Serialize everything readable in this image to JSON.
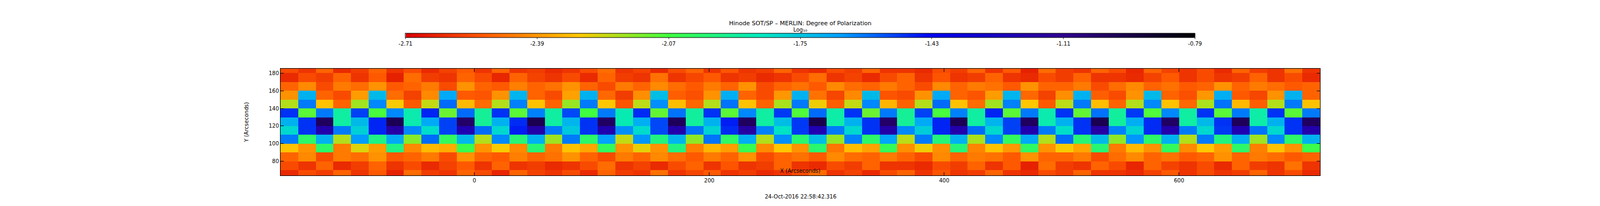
{
  "chart_data": {
    "type": "heatmap",
    "title": "Hinode SOT/SP – MERLIN: Degree of Polarization",
    "subtitle": "24-Oct-2016 22:58:42.316",
    "x_label": "X (Arcseconds)",
    "y_label": "Y (Arcseconds)",
    "colorbar_title": "Log₁₀",
    "x": [
      -157.5,
      -142.5,
      -127.5,
      -112.5,
      -97.5,
      -82.5,
      -67.5,
      -52.5,
      -37.5,
      -22.5,
      -7.5,
      7.5,
      22.5,
      37.5,
      52.5,
      67.5,
      82.5,
      97.5,
      112.5,
      127.5,
      142.5,
      157.5,
      172.5,
      187.5,
      202.5,
      217.5,
      232.5,
      247.5,
      262.5,
      277.5,
      292.5,
      307.5,
      322.5,
      337.5,
      352.5,
      367.5,
      382.5,
      397.5,
      412.5,
      427.5,
      442.5,
      457.5,
      472.5,
      487.5,
      502.5,
      517.5,
      532.5,
      547.5,
      562.5,
      577.5,
      592.5,
      607.5,
      622.5,
      637.5,
      652.5,
      667.5,
      682.5,
      697.5,
      712.5
    ],
    "y": [
      65,
      75,
      85,
      95,
      105,
      115,
      125,
      135,
      145,
      155,
      165,
      175,
      185
    ],
    "cells": [
      [
        -2.62,
        -2.55,
        -2.58,
        -2.5,
        -2.6,
        -2.52,
        -2.64,
        -2.48,
        -2.58,
        -2.6,
        -2.5,
        -2.55,
        -2.63,
        -2.5,
        -2.57,
        -2.6,
        -2.55,
        -2.62,
        -2.5,
        -2.58,
        -2.6,
        -2.47,
        -2.6,
        -2.56,
        -2.52,
        -2.6,
        -2.58,
        -2.62,
        -2.6,
        -2.55,
        -2.48,
        -2.6,
        -2.57,
        -2.62,
        -2.55,
        -2.5,
        -2.6,
        -2.53,
        -2.6,
        -2.58,
        -2.5,
        -2.6,
        -2.62,
        -2.55,
        -2.58,
        -2.5,
        -2.6,
        -2.6,
        -2.62,
        -2.57,
        -2.52,
        -2.6,
        -2.55,
        -2.6,
        -2.58,
        -2.5,
        -2.6,
        -2.55,
        -2.62
      ],
      [
        -2.55,
        -2.6,
        -2.5,
        -2.62,
        -2.58,
        -2.5,
        -2.6,
        -2.55,
        -2.62,
        -2.57,
        -2.52,
        -2.6,
        -2.5,
        -2.6,
        -2.58,
        -2.62,
        -2.6,
        -2.55,
        -2.48,
        -2.6,
        -2.57,
        -2.62,
        -2.55,
        -2.5,
        -2.6,
        -2.53,
        -2.6,
        -2.58,
        -2.5,
        -2.6,
        -2.62,
        -2.55,
        -2.58,
        -2.5,
        -2.6,
        -2.6,
        -2.62,
        -2.55,
        -2.58,
        -2.5,
        -2.6,
        -2.52,
        -2.64,
        -2.48,
        -2.58,
        -2.6,
        -2.5,
        -2.55,
        -2.63,
        -2.5,
        -2.57,
        -2.6,
        -2.55,
        -2.62,
        -2.5,
        -2.58,
        -2.6,
        -2.47,
        -2.6
      ],
      [
        -2.5,
        -2.42,
        -2.55,
        -2.45,
        -2.48,
        -2.4,
        -2.52,
        -2.5,
        -2.45,
        -2.55,
        -2.4,
        -2.5,
        -2.52,
        -2.44,
        -2.5,
        -2.47,
        -2.4,
        -2.5,
        -2.55,
        -2.45,
        -2.5,
        -2.42,
        -2.48,
        -2.52,
        -2.45,
        -2.5,
        -2.4,
        -2.55,
        -2.5,
        -2.47,
        -2.52,
        -2.42,
        -2.48,
        -2.5,
        -2.45,
        -2.5,
        -2.55,
        -2.42,
        -2.5,
        -2.45,
        -2.47,
        -2.52,
        -2.4,
        -2.5,
        -2.5,
        -2.45,
        -2.55,
        -2.48,
        -2.42,
        -2.5,
        -2.47,
        -2.52,
        -2.5,
        -2.4,
        -2.5,
        -2.45,
        -2.48,
        -2.52,
        -2.5
      ],
      [
        -2.3,
        -2.4,
        -2.0,
        -2.45,
        -2.25,
        -2.38,
        -1.95,
        -2.42,
        -2.32,
        -2.35,
        -2.05,
        -2.4,
        -2.28,
        -2.42,
        -1.98,
        -2.45,
        -2.3,
        -2.36,
        -2.02,
        -2.4,
        -2.26,
        -2.4,
        -1.96,
        -2.44,
        -2.33,
        -2.38,
        -2.04,
        -2.42,
        -2.29,
        -2.4,
        -1.99,
        -2.46,
        -2.31,
        -2.37,
        -2.03,
        -2.41,
        -2.27,
        -2.41,
        -1.97,
        -2.43,
        -2.3,
        -2.39,
        -2.01,
        -2.4,
        -2.28,
        -2.36,
        -1.98,
        -2.45,
        -2.32,
        -2.4,
        -2.02,
        -2.42,
        -2.29,
        -2.38,
        -2.0,
        -2.44,
        -2.3,
        -2.4,
        -2.05
      ],
      [
        -1.6,
        -2.0,
        -1.7,
        -2.2,
        -1.65,
        -1.95,
        -1.68,
        -2.15,
        -1.58,
        -2.02,
        -1.72,
        -2.2,
        -1.62,
        -1.98,
        -1.7,
        -2.18,
        -1.6,
        -2.0,
        -1.66,
        -2.22,
        -1.64,
        -1.96,
        -1.71,
        -2.16,
        -1.59,
        -2.01,
        -1.69,
        -2.2,
        -1.63,
        -1.99,
        -1.73,
        -2.17,
        -1.61,
        -2.0,
        -1.67,
        -2.21,
        -1.6,
        -1.97,
        -1.7,
        -2.19,
        -1.62,
        -2.02,
        -1.68,
        -2.2,
        -1.58,
        -1.98,
        -1.72,
        -2.16,
        -1.64,
        -2.0,
        -1.7,
        -2.2,
        -1.6,
        -1.96,
        -1.69,
        -2.18,
        -1.62,
        -2.0,
        -1.7
      ],
      [
        -1.8,
        -1.5,
        -1.2,
        -1.6,
        -1.78,
        -1.48,
        -1.18,
        -1.62,
        -1.82,
        -1.52,
        -1.22,
        -1.58,
        -1.8,
        -1.47,
        -1.19,
        -1.6,
        -1.76,
        -1.5,
        -1.21,
        -1.63,
        -1.81,
        -1.53,
        -1.2,
        -1.59,
        -1.79,
        -1.49,
        -1.17,
        -1.61,
        -1.83,
        -1.51,
        -1.22,
        -1.6,
        -1.8,
        -1.5,
        -1.19,
        -1.62,
        -1.77,
        -1.48,
        -1.2,
        -1.58,
        -1.8,
        -1.52,
        -1.21,
        -1.6,
        -1.82,
        -1.5,
        -1.18,
        -1.61,
        -1.79,
        -1.49,
        -1.2,
        -1.6,
        -1.8,
        -1.51,
        -1.22,
        -1.59,
        -1.8,
        -1.5,
        -1.2
      ],
      [
        -1.7,
        -1.5,
        -1.0,
        -1.9,
        -1.72,
        -1.48,
        -0.98,
        -1.88,
        -1.68,
        -1.52,
        -1.02,
        -1.92,
        -1.7,
        -1.49,
        -0.97,
        -1.9,
        -1.71,
        -1.5,
        -1.01,
        -1.87,
        -1.69,
        -1.53,
        -0.99,
        -1.91,
        -1.7,
        -1.47,
        -1.0,
        -1.9,
        -1.73,
        -1.51,
        -0.96,
        -1.89,
        -1.7,
        -1.5,
        -1.02,
        -1.92,
        -1.68,
        -1.48,
        -0.98,
        -1.9,
        -1.71,
        -1.52,
        -1.0,
        -1.88,
        -1.7,
        -1.5,
        -0.97,
        -1.91,
        -1.69,
        -1.49,
        -1.01,
        -1.9,
        -1.72,
        -1.5,
        -0.99,
        -1.89,
        -1.7,
        -1.5,
        -1.0
      ],
      [
        -1.5,
        -2.1,
        -1.6,
        -1.9,
        -1.52,
        -2.08,
        -1.62,
        -1.88,
        -1.48,
        -2.12,
        -1.58,
        -1.92,
        -1.5,
        -2.1,
        -1.61,
        -1.9,
        -1.53,
        -2.07,
        -1.6,
        -1.87,
        -1.49,
        -2.11,
        -1.59,
        -1.91,
        -1.5,
        -2.1,
        -1.62,
        -1.9,
        -1.51,
        -2.09,
        -1.58,
        -1.89,
        -1.5,
        -2.12,
        -1.6,
        -1.92,
        -1.52,
        -2.08,
        -1.61,
        -1.9,
        -1.48,
        -2.1,
        -1.6,
        -1.88,
        -1.5,
        -2.11,
        -1.59,
        -1.91,
        -1.51,
        -2.09,
        -1.62,
        -1.9,
        -1.5,
        -2.1,
        -1.6,
        -1.89,
        -1.5,
        -2.1,
        -1.6
      ],
      [
        -2.2,
        -1.6,
        -2.3,
        -2.5,
        -2.18,
        -1.62,
        -2.28,
        -2.52,
        -2.22,
        -1.58,
        -2.32,
        -2.48,
        -2.2,
        -1.61,
        -2.3,
        -2.5,
        -2.17,
        -1.6,
        -2.29,
        -2.53,
        -2.21,
        -1.63,
        -2.31,
        -2.49,
        -2.2,
        -1.59,
        -2.3,
        -2.5,
        -2.19,
        -1.6,
        -2.27,
        -2.51,
        -2.22,
        -1.62,
        -2.33,
        -2.5,
        -2.2,
        -1.58,
        -2.3,
        -2.48,
        -2.18,
        -1.61,
        -2.29,
        -2.52,
        -2.21,
        -1.6,
        -2.31,
        -2.5,
        -2.2,
        -1.62,
        -2.3,
        -2.49,
        -2.19,
        -1.59,
        -2.32,
        -2.51,
        -2.2,
        -1.6,
        -2.3
      ],
      [
        -2.4,
        -1.7,
        -2.5,
        -2.55,
        -2.38,
        -1.72,
        -2.48,
        -2.57,
        -2.42,
        -1.68,
        -2.52,
        -2.53,
        -2.4,
        -1.71,
        -2.5,
        -2.55,
        -2.37,
        -1.7,
        -2.49,
        -2.58,
        -2.41,
        -1.73,
        -2.51,
        -2.54,
        -2.4,
        -1.69,
        -2.5,
        -2.55,
        -2.39,
        -1.7,
        -2.47,
        -2.56,
        -2.42,
        -1.72,
        -2.53,
        -2.55,
        -2.4,
        -1.68,
        -2.5,
        -2.53,
        -2.38,
        -1.71,
        -2.49,
        -2.57,
        -2.41,
        -1.7,
        -2.51,
        -2.55,
        -2.4,
        -1.72,
        -2.5,
        -2.54,
        -2.39,
        -1.69,
        -2.52,
        -2.56,
        -2.4,
        -1.7,
        -2.5
      ],
      [
        -2.5,
        -2.42,
        -2.55,
        -2.45,
        -2.48,
        -2.4,
        -2.52,
        -2.5,
        -2.45,
        -2.55,
        -2.4,
        -2.5,
        -2.52,
        -2.44,
        -2.5,
        -2.47,
        -2.4,
        -2.5,
        -2.55,
        -2.45,
        -2.5,
        -2.42,
        -2.48,
        -2.52,
        -2.45,
        -2.5,
        -2.4,
        -2.55,
        -2.5,
        -2.47,
        -2.52,
        -2.42,
        -2.48,
        -2.5,
        -2.45,
        -2.5,
        -2.55,
        -2.42,
        -2.5,
        -2.45,
        -2.47,
        -2.52,
        -2.4,
        -2.5,
        -2.5,
        -2.45,
        -2.55,
        -2.48,
        -2.42,
        -2.5,
        -2.47,
        -2.52,
        -2.5,
        -2.4,
        -2.5,
        -2.45,
        -2.48,
        -2.52,
        -2.5
      ],
      [
        -2.62,
        -2.55,
        -2.58,
        -2.5,
        -2.6,
        -2.52,
        -2.64,
        -2.48,
        -2.58,
        -2.6,
        -2.5,
        -2.55,
        -2.63,
        -2.5,
        -2.57,
        -2.6,
        -2.55,
        -2.62,
        -2.5,
        -2.58,
        -2.6,
        -2.47,
        -2.6,
        -2.56,
        -2.52,
        -2.6,
        -2.58,
        -2.62,
        -2.6,
        -2.55,
        -2.48,
        -2.6,
        -2.57,
        -2.62,
        -2.55,
        -2.5,
        -2.6,
        -2.53,
        -2.6,
        -2.58,
        -2.5,
        -2.6,
        -2.62,
        -2.55,
        -2.58,
        -2.5,
        -2.6,
        -2.6,
        -2.62,
        -2.57,
        -2.52,
        -2.6,
        -2.55,
        -2.6,
        -2.58,
        -2.5,
        -2.6,
        -2.55,
        -2.62
      ],
      [
        -2.55,
        -2.6,
        -2.5,
        -2.62,
        -2.58,
        -2.5,
        -2.6,
        -2.55,
        -2.62,
        -2.57,
        -2.52,
        -2.6,
        -2.5,
        -2.6,
        -2.58,
        -2.62,
        -2.6,
        -2.55,
        -2.48,
        -2.6,
        -2.57,
        -2.62,
        -2.55,
        -2.5,
        -2.6,
        -2.53,
        -2.6,
        -2.58,
        -2.5,
        -2.6,
        -2.62,
        -2.55,
        -2.58,
        -2.5,
        -2.6,
        -2.6,
        -2.62,
        -2.55,
        -2.58,
        -2.5,
        -2.6,
        -2.52,
        -2.64,
        -2.48,
        -2.58,
        -2.6,
        -2.5,
        -2.55,
        -2.63,
        -2.5,
        -2.57,
        -2.6,
        -2.55,
        -2.62,
        -2.5,
        -2.58,
        -2.6,
        -2.47,
        -2.6
      ]
    ],
    "xlim": [
      -165,
      720
    ],
    "ylim": [
      64,
      185
    ],
    "xticks": [
      0,
      200,
      400,
      600
    ],
    "yticks": [
      80,
      100,
      120,
      140,
      160,
      180
    ],
    "colorbar_range": [
      -2.71,
      -0.79
    ],
    "colorbar_ticks": [
      -2.71,
      -2.39,
      -2.07,
      -1.75,
      -1.43,
      -1.11,
      -0.79
    ]
  }
}
